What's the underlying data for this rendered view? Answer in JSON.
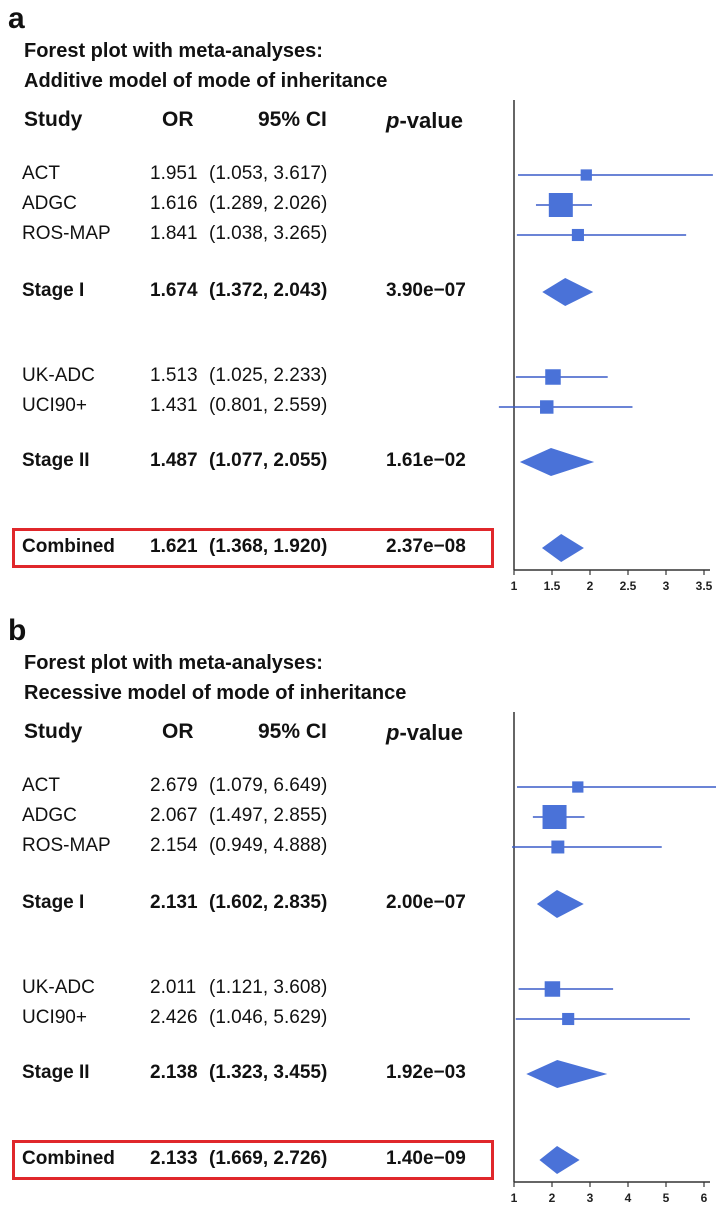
{
  "chart_data": [
    {
      "panel": "a",
      "type": "forest",
      "title": [
        "Forest plot with meta-analyses:",
        "Additive model of mode of inheritance"
      ],
      "headers": {
        "study": "Study",
        "or": "OR",
        "ci": "95% CI",
        "p_italic": "p",
        "p_rest": "-value"
      },
      "xticks": [
        "1",
        "1.5",
        "2",
        "2.5",
        "3",
        "3.5"
      ],
      "xlim": [
        1,
        3.5
      ],
      "rows": [
        {
          "study": "ACT",
          "or": "1.951",
          "ci": "(1.053, 3.617)",
          "p": "",
          "type": "study",
          "value": 1.951,
          "lo": 1.053,
          "hi": 3.617,
          "weight": 0.25
        },
        {
          "study": "ADGC",
          "or": "1.616",
          "ci": "(1.289, 2.026)",
          "p": "",
          "type": "study",
          "value": 1.616,
          "lo": 1.289,
          "hi": 2.026,
          "weight": 1.0
        },
        {
          "study": "ROS-MAP",
          "or": "1.841",
          "ci": "(1.038, 3.265)",
          "p": "",
          "type": "study",
          "value": 1.841,
          "lo": 1.038,
          "hi": 3.265,
          "weight": 0.3
        },
        {
          "study": "Stage I",
          "or": "1.674",
          "ci": "(1.372, 2.043)",
          "p": "3.90e−07",
          "type": "summary",
          "value": 1.674,
          "lo": 1.372,
          "hi": 2.043
        },
        {
          "study": "UK-ADC",
          "or": "1.513",
          "ci": "(1.025, 2.233)",
          "p": "",
          "type": "study",
          "value": 1.513,
          "lo": 1.025,
          "hi": 2.233,
          "weight": 0.5
        },
        {
          "study": "UCI90+",
          "or": "1.431",
          "ci": "(0.801, 2.559)",
          "p": "",
          "type": "study",
          "value": 1.431,
          "lo": 0.801,
          "hi": 2.559,
          "weight": 0.38
        },
        {
          "study": "Stage II",
          "or": "1.487",
          "ci": "(1.077, 2.055)",
          "p": "1.61e−02",
          "type": "summary",
          "value": 1.487,
          "lo": 1.077,
          "hi": 2.055
        },
        {
          "study": "Combined",
          "or": "1.621",
          "ci": "(1.368, 1.920)",
          "p": "2.37e−08",
          "type": "summary",
          "value": 1.621,
          "lo": 1.368,
          "hi": 1.92,
          "highlight": true
        }
      ]
    },
    {
      "panel": "b",
      "type": "forest",
      "title": [
        "Forest plot with meta-analyses:",
        "Recessive model of mode of inheritance"
      ],
      "headers": {
        "study": "Study",
        "or": "OR",
        "ci": "95% CI",
        "p_italic": "p",
        "p_rest": "-value"
      },
      "xticks": [
        "1",
        "2",
        "3",
        "4",
        "5",
        "6"
      ],
      "xlim": [
        1,
        6
      ],
      "rows": [
        {
          "study": "ACT",
          "or": "2.679",
          "ci": "(1.079, 6.649)",
          "p": "",
          "type": "study",
          "value": 2.679,
          "lo": 1.079,
          "hi": 6.649,
          "weight": 0.25
        },
        {
          "study": "ADGC",
          "or": "2.067",
          "ci": "(1.497, 2.855)",
          "p": "",
          "type": "study",
          "value": 2.067,
          "lo": 1.497,
          "hi": 2.855,
          "weight": 1.0
        },
        {
          "study": "ROS-MAP",
          "or": "2.154",
          "ci": "(0.949, 4.888)",
          "p": "",
          "type": "study",
          "value": 2.154,
          "lo": 0.949,
          "hi": 4.888,
          "weight": 0.35
        },
        {
          "study": "Stage I",
          "or": "2.131",
          "ci": "(1.602, 2.835)",
          "p": "2.00e−07",
          "type": "summary",
          "value": 2.131,
          "lo": 1.602,
          "hi": 2.835
        },
        {
          "study": "UK-ADC",
          "or": "2.011",
          "ci": "(1.121, 3.608)",
          "p": "",
          "type": "study",
          "value": 2.011,
          "lo": 1.121,
          "hi": 3.608,
          "weight": 0.5
        },
        {
          "study": "UCI90+",
          "or": "2.426",
          "ci": "(1.046, 5.629)",
          "p": "",
          "type": "study",
          "value": 2.426,
          "lo": 1.046,
          "hi": 5.629,
          "weight": 0.3
        },
        {
          "study": "Stage II",
          "or": "2.138",
          "ci": "(1.323, 3.455)",
          "p": "1.92e−03",
          "type": "summary",
          "value": 2.138,
          "lo": 1.323,
          "hi": 3.455
        },
        {
          "study": "Combined",
          "or": "2.133",
          "ci": "(1.669, 2.726)",
          "p": "1.40e−09",
          "type": "summary",
          "value": 2.133,
          "lo": 1.669,
          "hi": 2.726,
          "highlight": true
        }
      ]
    }
  ],
  "colors": {
    "marker": "#4a72d8",
    "line": "#3a5cc8",
    "highlight": "#e0272b",
    "axis": "#333333"
  }
}
